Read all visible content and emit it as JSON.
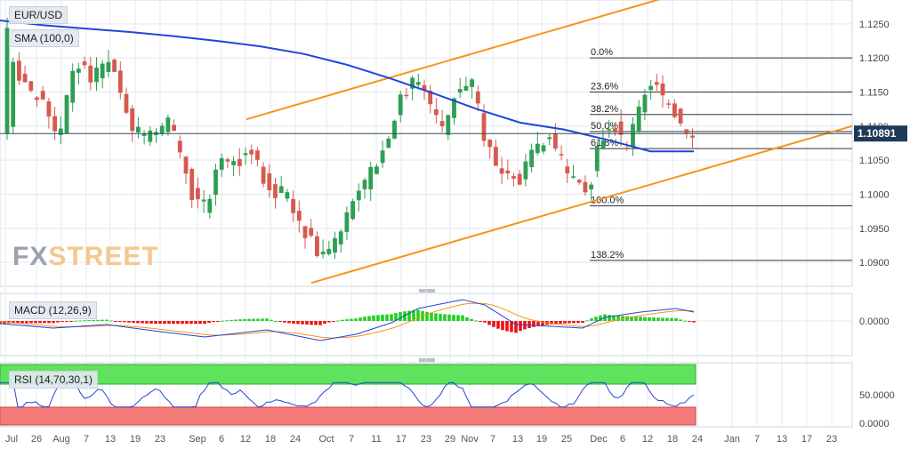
{
  "colors": {
    "bull": "#2e9e55",
    "bear": "#d65a4e",
    "sma": "#2046d8",
    "channel": "#f7941d",
    "macd_line": "#2046d8",
    "macd_signal": "#f7941d",
    "hist_pos": "#1fd11f",
    "hist_neg": "#ee1111",
    "rsi_line": "#2046d8",
    "rsi_over": "#5fe35f",
    "rsi_under": "#f47a7a",
    "grid": "#e4e8ec"
  },
  "header": {
    "symbol": "EUR/USD",
    "sma_label": "SMA (100,0)",
    "macd_label": "MACD (12,26,9)",
    "rsi_label": "RSI (14,70,30,1)",
    "watermark_a": "FX",
    "watermark_b": "STREET"
  },
  "chart_data": [
    {
      "type": "candlestick",
      "title": "EUR/USD",
      "ylim": [
        1.0865,
        1.1285
      ],
      "y_ticks": [
        "1.1250",
        "1.1200",
        "1.1150",
        "1.1100",
        "1.1050",
        "1.1000",
        "1.0950",
        "1.0900"
      ],
      "y_tick_values": [
        1.125,
        1.12,
        1.115,
        1.11,
        1.105,
        1.1,
        1.095,
        1.09
      ],
      "x_ticks": [
        "Jul",
        "26",
        "Aug",
        "7",
        "13",
        "19",
        "23",
        "Sep",
        "6",
        "12",
        "18",
        "24",
        "Oct",
        "7",
        "11",
        "17",
        "23",
        "29",
        "Nov",
        "7",
        "13",
        "19",
        "25",
        "Dec",
        "6",
        "12",
        "18",
        "24",
        "Jan",
        "7",
        "13",
        "17",
        "23"
      ],
      "last_price": "1.10891",
      "last_price_value": 1.10891,
      "series_sma": {
        "name": "SMA (100,0)",
        "values": [
          1.1255,
          1.1248,
          1.1243,
          1.1238,
          1.1232,
          1.1225,
          1.1217,
          1.1206,
          1.119,
          1.117,
          1.1148,
          1.1125,
          1.1105,
          1.1095,
          1.108,
          1.1063,
          1.1063
        ]
      },
      "fibonacci": [
        {
          "label": "0.0%",
          "value": 1.12
        },
        {
          "label": "23.6%",
          "value": 1.115
        },
        {
          "label": "38.2%",
          "value": 1.1117
        },
        {
          "label": "50.0%",
          "value": 1.1092
        },
        {
          "label": "61.8%",
          "value": 1.1067
        },
        {
          "label": "100.0%",
          "value": 1.0983
        },
        {
          "label": "138.2%",
          "value": 1.0903
        }
      ],
      "channel": {
        "upper": {
          "from": 1.111,
          "to": 1.129
        },
        "lower": {
          "from": 1.087,
          "to": 1.11
        }
      }
    },
    {
      "type": "bar",
      "title": "MACD (12,26,9)",
      "y_ticks": [
        "0.0000"
      ],
      "y_tick_values": [
        0.0
      ]
    },
    {
      "type": "line",
      "title": "RSI (14,70,30,1)",
      "y_ticks": [
        "50.0000",
        "0.0000"
      ],
      "y_tick_values": [
        50,
        0
      ]
    }
  ]
}
